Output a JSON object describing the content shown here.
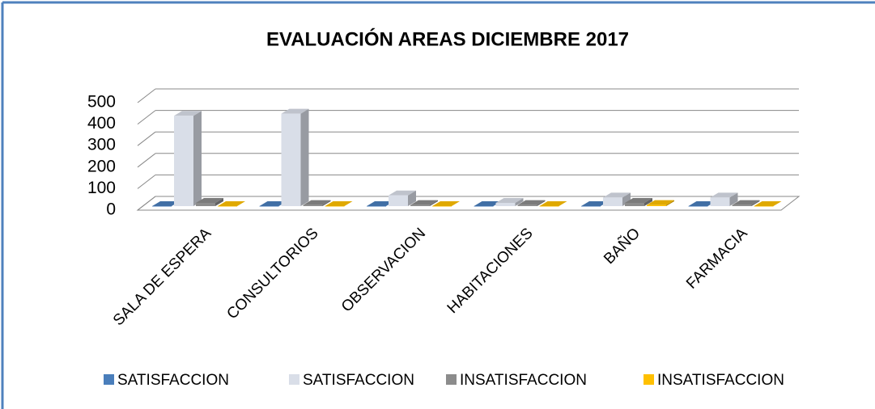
{
  "chart_data": {
    "type": "bar3d",
    "title": "EVALUACIÓN AREAS  DICIEMBRE 2017",
    "categories": [
      "SALA DE ESPERA",
      "CONSULTORIOS",
      "OBSERVACION",
      "HABITACIONES",
      "BAÑO",
      "FARMACIA"
    ],
    "series": [
      {
        "name": "SATISFACCION",
        "color": "#4a7ebb",
        "values": [
          0,
          0,
          0,
          0,
          0,
          0
        ]
      },
      {
        "name": "SATISFACCION",
        "color": "#d9dee8",
        "values": [
          420,
          430,
          50,
          15,
          40,
          40
        ]
      },
      {
        "name": "INSATISFACCION",
        "color": "#8c8c8c",
        "values": [
          15,
          5,
          5,
          5,
          15,
          5
        ]
      },
      {
        "name": "INSATISFACCION",
        "color": "#ffc000",
        "values": [
          0,
          0,
          0,
          0,
          5,
          0
        ]
      }
    ],
    "ylim": [
      0,
      500
    ],
    "yticks": [
      0,
      100,
      200,
      300,
      400,
      500
    ],
    "grid": true,
    "legend": "bottom"
  }
}
